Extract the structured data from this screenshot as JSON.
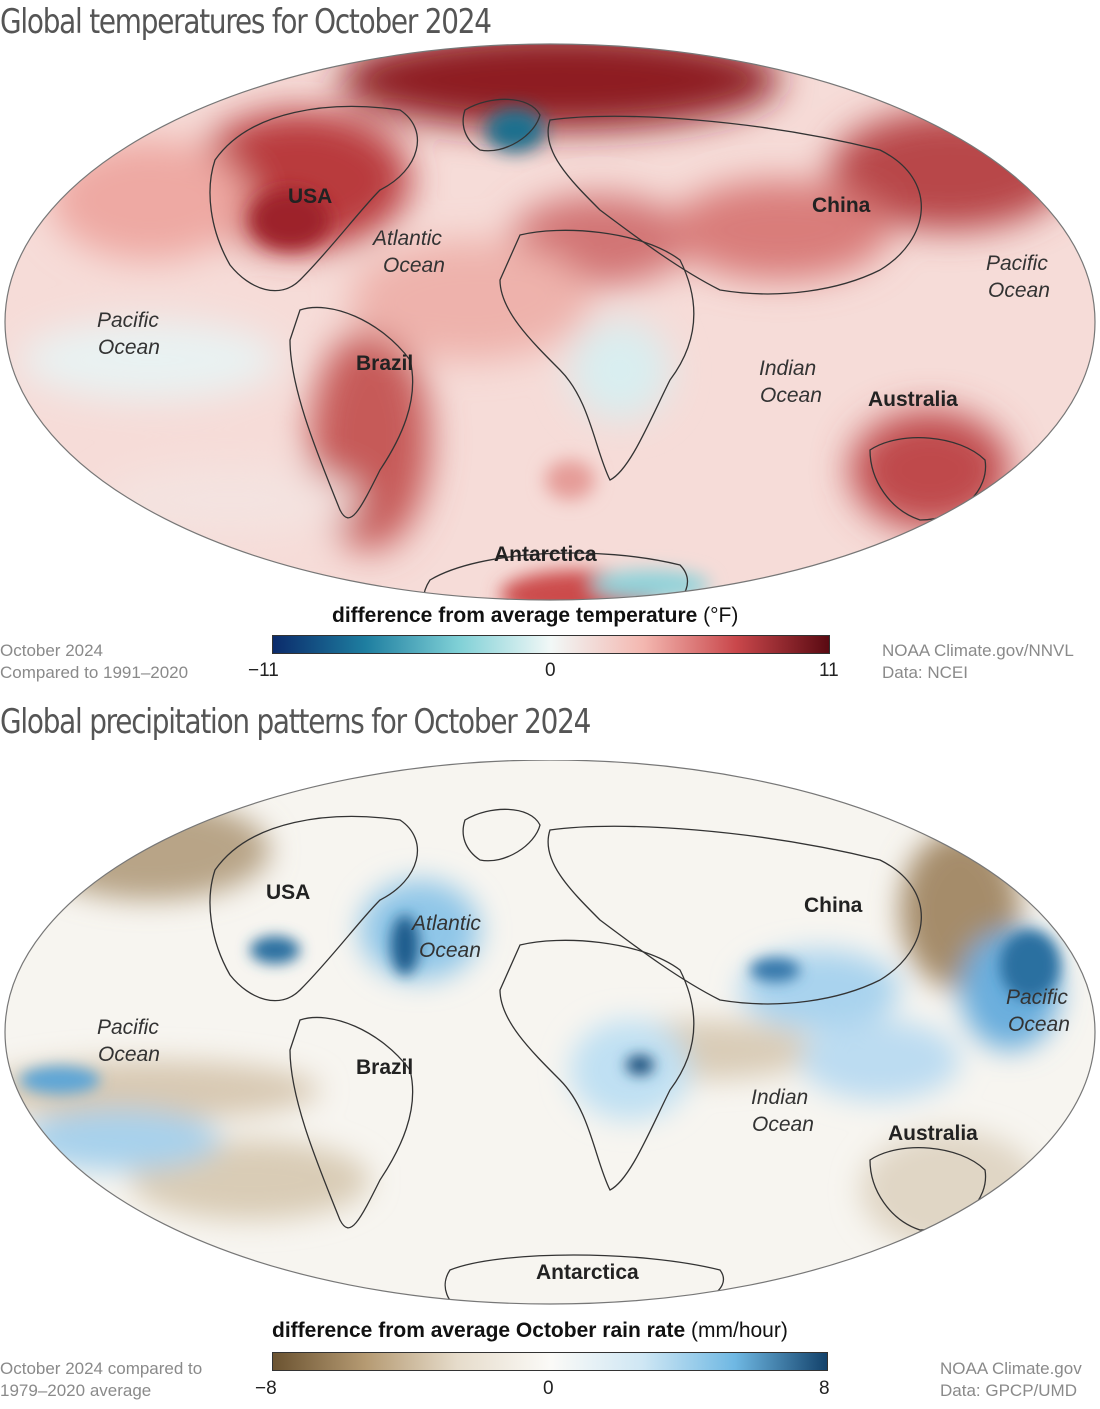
{
  "temperature": {
    "title": "Global temperatures for October 2024",
    "colorbar": {
      "title": "difference from average temperature",
      "unit": "(°F)",
      "min": "−11",
      "mid": "0",
      "max": "11",
      "colors": [
        "#0b2b6b",
        "#1e7ea0",
        "#7fd0d6",
        "#f2f8f7",
        "#f3b7b0",
        "#c9474b",
        "#5a0a12"
      ]
    },
    "note_left": [
      "October 2024",
      "Compared to 1991–2020"
    ],
    "note_right": [
      "NOAA Climate.gov/NNVL",
      "Data: NCEI"
    ],
    "labels": {
      "usa": "USA",
      "china": "China",
      "brazil": "Brazil",
      "australia": "Australia",
      "antarctica": "Antarctica",
      "atlantic_1": "Atlantic",
      "atlantic_2": "Ocean",
      "pacific_w_1": "Pacific",
      "pacific_w_2": "Ocean",
      "pacific_e_1": "Pacific",
      "pacific_e_2": "Ocean",
      "indian_1": "Indian",
      "indian_2": "Ocean"
    }
  },
  "precipitation": {
    "title": "Global precipitation patterns for October 2024",
    "colorbar": {
      "title": "difference from average October rain rate",
      "unit": "(mm/hour)",
      "min": "−8",
      "mid": "0",
      "max": "8",
      "colors": [
        "#6b5331",
        "#b59a72",
        "#e6dccb",
        "#fbfaf7",
        "#cfe7f4",
        "#6fb8e3",
        "#13426b"
      ]
    },
    "note_left": [
      "October 2024 compared to",
      "1979–2020 average"
    ],
    "note_right": [
      "NOAA Climate.gov",
      "Data: GPCP/UMD"
    ],
    "labels": {
      "usa": "USA",
      "china": "China",
      "brazil": "Brazil",
      "australia": "Australia",
      "antarctica": "Antarctica",
      "atlantic_1": "Atlantic",
      "atlantic_2": "Ocean",
      "pacific_w_1": "Pacific",
      "pacific_w_2": "Ocean",
      "pacific_e_1": "Pacific",
      "pacific_e_2": "Ocean",
      "indian_1": "Indian",
      "indian_2": "Ocean"
    }
  }
}
